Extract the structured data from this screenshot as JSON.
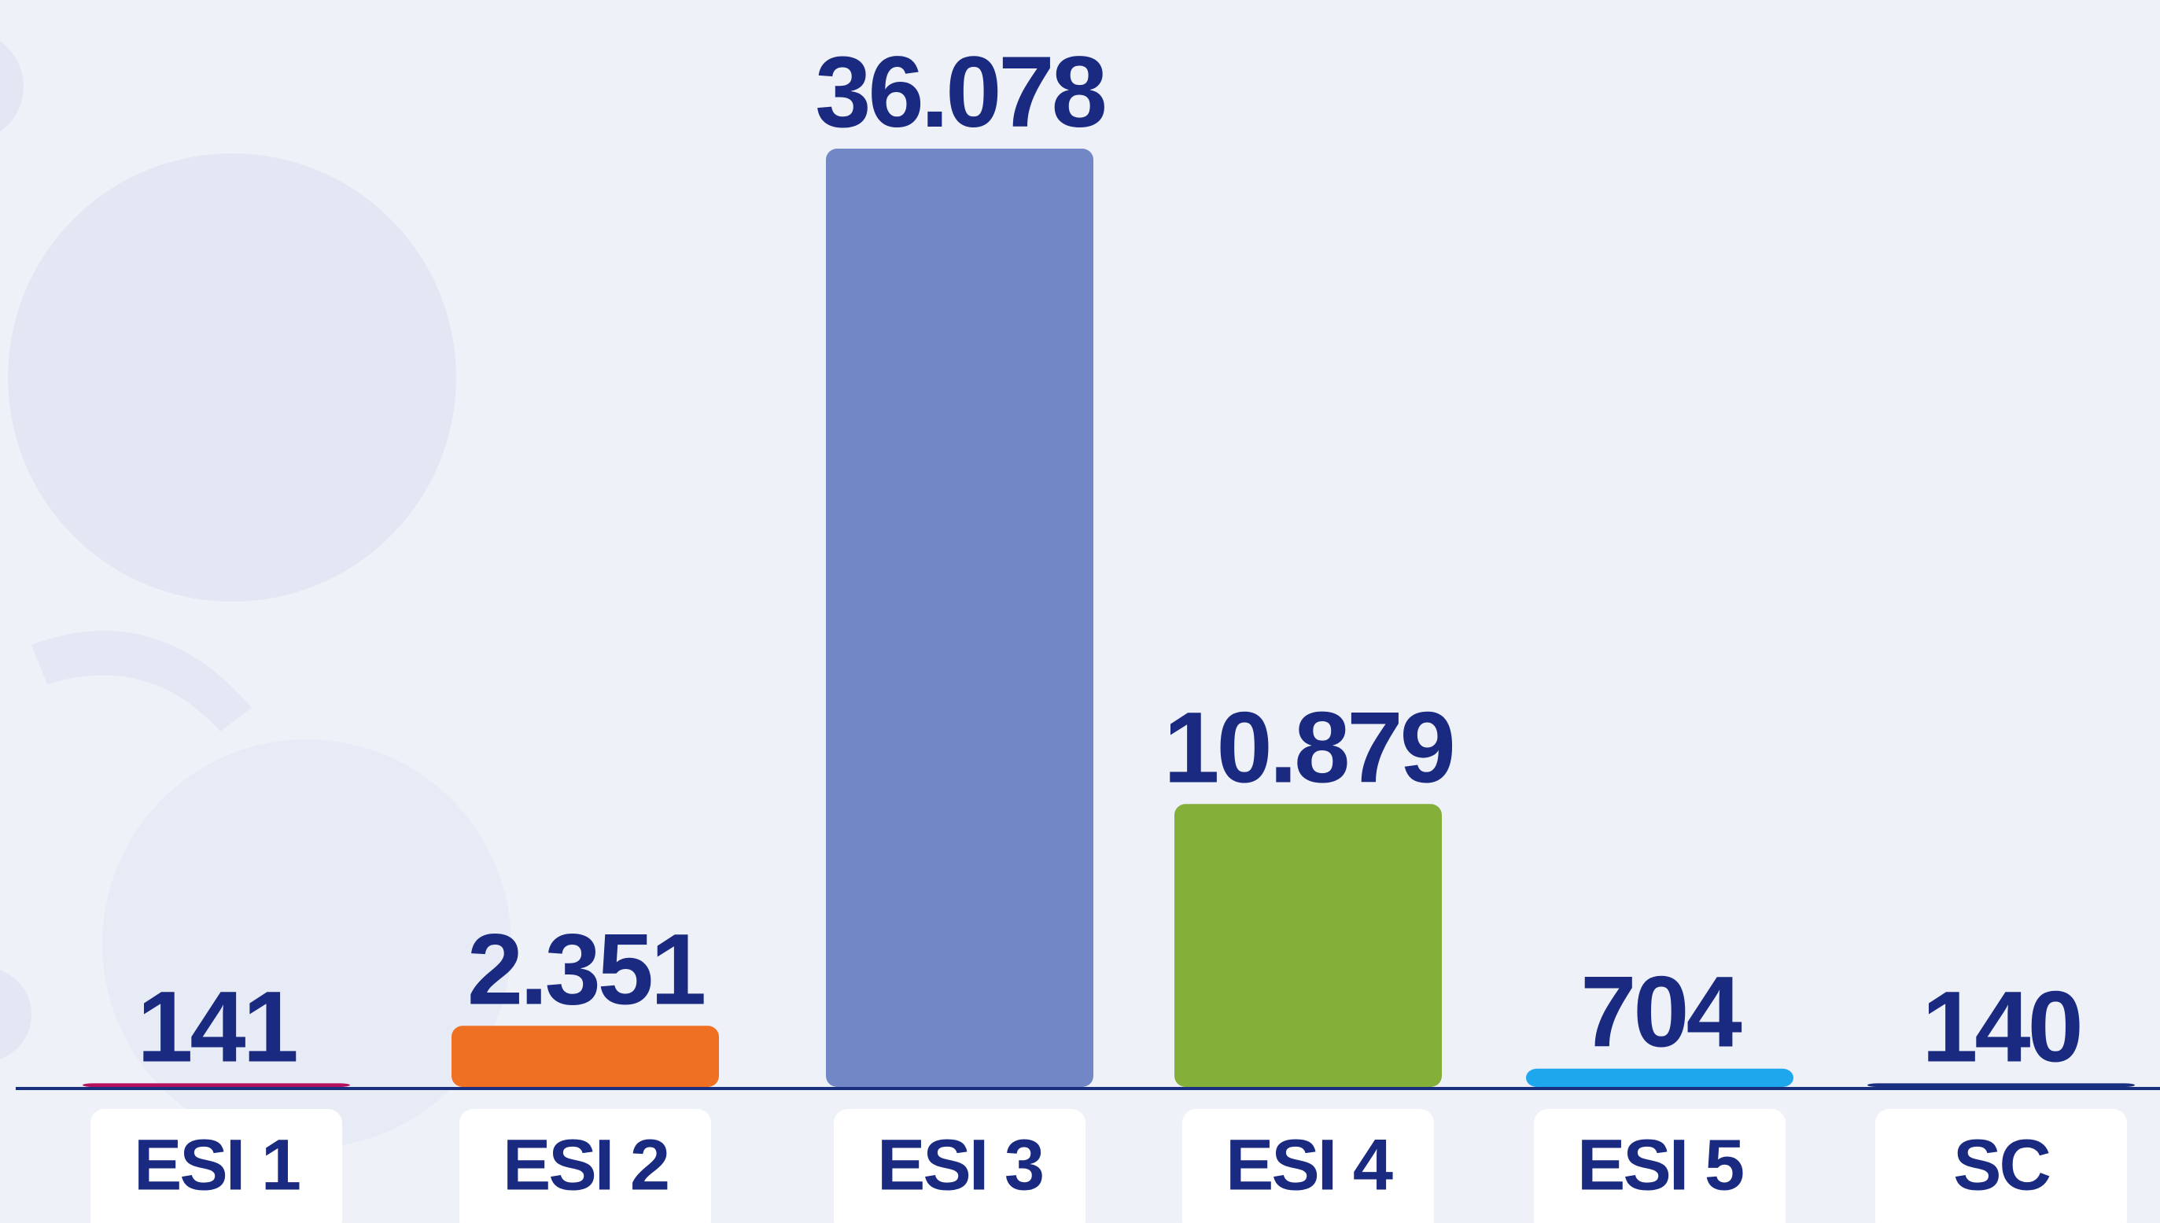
{
  "chart_data": {
    "type": "bar",
    "categories": [
      "ESI 1",
      "ESI 2",
      "ESI 3",
      "ESI 4",
      "ESI 5",
      "SC"
    ],
    "values": [
      141,
      2351,
      36078,
      10879,
      704,
      140
    ],
    "value_labels": [
      "141",
      "2.351",
      "36.078",
      "10.879",
      "704",
      "140"
    ],
    "colors": [
      "#b5105e",
      "#ef7022",
      "#7288c6",
      "#84b03a",
      "#1fa7ee",
      "#1a2f80"
    ]
  }
}
